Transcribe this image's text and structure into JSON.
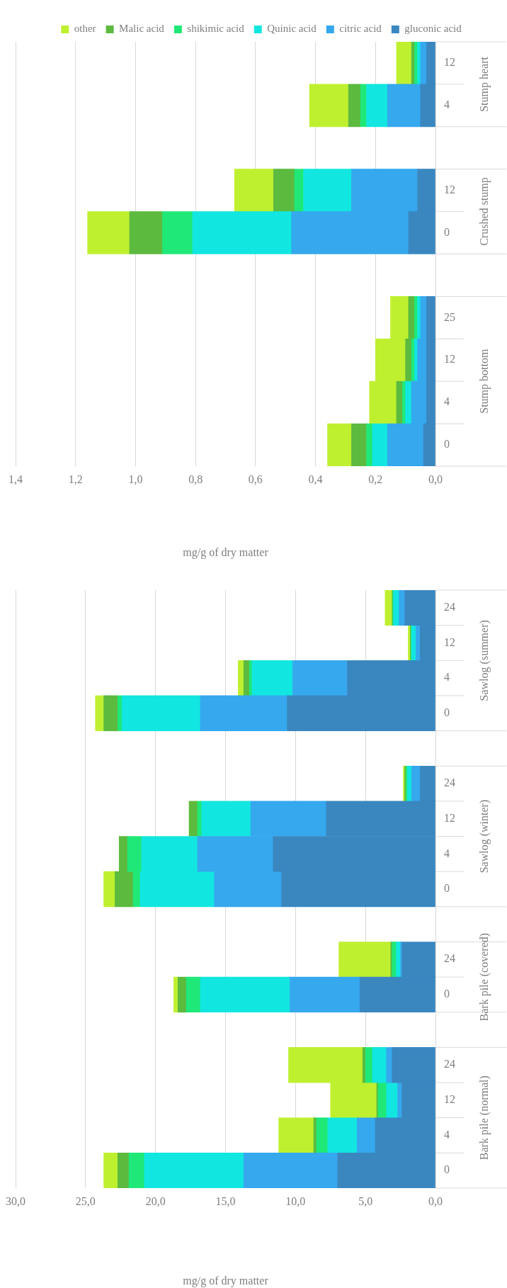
{
  "chart_data": [
    {
      "type": "bar",
      "stacked": true,
      "orientation": "horizontal",
      "xlabel": "mg/g of dry matter",
      "categories": [
        "12",
        "4",
        null,
        "12",
        "0",
        null,
        "25",
        "12",
        "4",
        "0"
      ],
      "annotations": [
        "Stump heart",
        "Crushed stump",
        "Stump bottom"
      ],
      "series": [
        {
          "name": "gluconic acid",
          "color": "#3a87c0",
          "values": [
            0.03,
            0.05,
            null,
            0.06,
            0.09,
            null,
            0.03,
            0.03,
            0.03,
            0.04
          ]
        },
        {
          "name": "citric acid",
          "color": "#35a8ee",
          "values": [
            0.02,
            0.11,
            null,
            0.22,
            0.39,
            null,
            0.02,
            0.03,
            0.05,
            0.12
          ]
        },
        {
          "name": "Quinic acid",
          "color": "#12e6e0",
          "values": [
            0.01,
            0.07,
            null,
            0.16,
            0.33,
            null,
            0.01,
            0.01,
            0.02,
            0.05
          ]
        },
        {
          "name": "shikimic acid",
          "color": "#20e878",
          "values": [
            0.01,
            0.02,
            null,
            0.03,
            0.1,
            null,
            0.01,
            0.01,
            0.01,
            0.02
          ]
        },
        {
          "name": "Malic acid",
          "color": "#5cba3e",
          "values": [
            0.01,
            0.04,
            null,
            0.07,
            0.11,
            null,
            0.02,
            0.02,
            0.02,
            0.05
          ]
        },
        {
          "name": "other",
          "color": "#bff030",
          "values": [
            0.05,
            0.13,
            null,
            0.13,
            0.14,
            null,
            0.06,
            0.1,
            0.09,
            0.08
          ]
        }
      ],
      "xlim": [
        1.4,
        0
      ],
      "xticks": [
        {
          "value": 0,
          "label": "0,0"
        },
        {
          "value": 0.2,
          "label": "0,2"
        },
        {
          "value": 0.4,
          "label": "0,4"
        },
        {
          "value": 0.6,
          "label": "0,6"
        },
        {
          "value": 0.8,
          "label": "0,8"
        },
        {
          "value": 1.0,
          "label": "1,0"
        },
        {
          "value": 1.2,
          "label": "1,2"
        },
        {
          "value": 1.4,
          "label": "1,4"
        }
      ],
      "grid": "x",
      "legend": "top"
    },
    {
      "type": "bar",
      "stacked": true,
      "orientation": "horizontal",
      "xlabel": "mg/g of dry matter",
      "categories": [
        "24",
        "12",
        "4",
        "0",
        null,
        "24",
        "12",
        "4",
        "0",
        null,
        "24",
        "0",
        null,
        "24",
        "12",
        "4",
        "0"
      ],
      "annotations": [
        "Sawlog (summer)",
        "Sawlog (winter)",
        "Bark pile (covered)",
        "Bark pile (normal)"
      ],
      "series": [
        {
          "color": "#3a87c0",
          "values": [
            2.2,
            1.1,
            6.3,
            10.6,
            null,
            1.1,
            7.8,
            11.6,
            11.0,
            null,
            2.4,
            5.4,
            null,
            3.1,
            2.4,
            4.3,
            7.0
          ]
        },
        {
          "color": "#35a8ee",
          "values": [
            0.4,
            0.3,
            3.9,
            6.2,
            null,
            0.6,
            5.4,
            5.4,
            4.8,
            null,
            0.1,
            5.0,
            null,
            0.4,
            0.3,
            1.3,
            6.7
          ]
        },
        {
          "color": "#12e6e0",
          "values": [
            0.4,
            0.3,
            2.9,
            5.6,
            null,
            0.3,
            3.5,
            4.0,
            5.3,
            null,
            0.3,
            6.4,
            null,
            1.0,
            0.8,
            2.1,
            7.1
          ]
        },
        {
          "color": "#20e878",
          "values": [
            0.05,
            0.05,
            0.2,
            0.3,
            null,
            0.1,
            0.3,
            1.0,
            0.5,
            null,
            0.3,
            1.0,
            null,
            0.5,
            0.6,
            0.8,
            1.1
          ]
        },
        {
          "color": "#5cba3e",
          "values": [
            0.05,
            0.05,
            0.4,
            1.0,
            null,
            0.1,
            0.6,
            0.6,
            1.3,
            null,
            0.1,
            0.6,
            null,
            0.2,
            0.1,
            0.2,
            0.8
          ]
        },
        {
          "color": "#bff030",
          "values": [
            0.5,
            0.15,
            0.4,
            0.6,
            null,
            0.1,
            0,
            0,
            0.8,
            null,
            3.7,
            0.3,
            null,
            5.3,
            3.3,
            2.5,
            1.0
          ]
        }
      ],
      "xlim": [
        30,
        0
      ],
      "xticks": [
        {
          "value": 0,
          "label": "0,0"
        },
        {
          "value": 5,
          "label": "5,0"
        },
        {
          "value": 10,
          "label": "10,0"
        },
        {
          "value": 15,
          "label": "15,0"
        },
        {
          "value": 20,
          "label": "20,0"
        },
        {
          "value": 25,
          "label": "25,0"
        },
        {
          "value": 30,
          "label": "30,0"
        }
      ],
      "grid": "x",
      "legend": false
    }
  ]
}
